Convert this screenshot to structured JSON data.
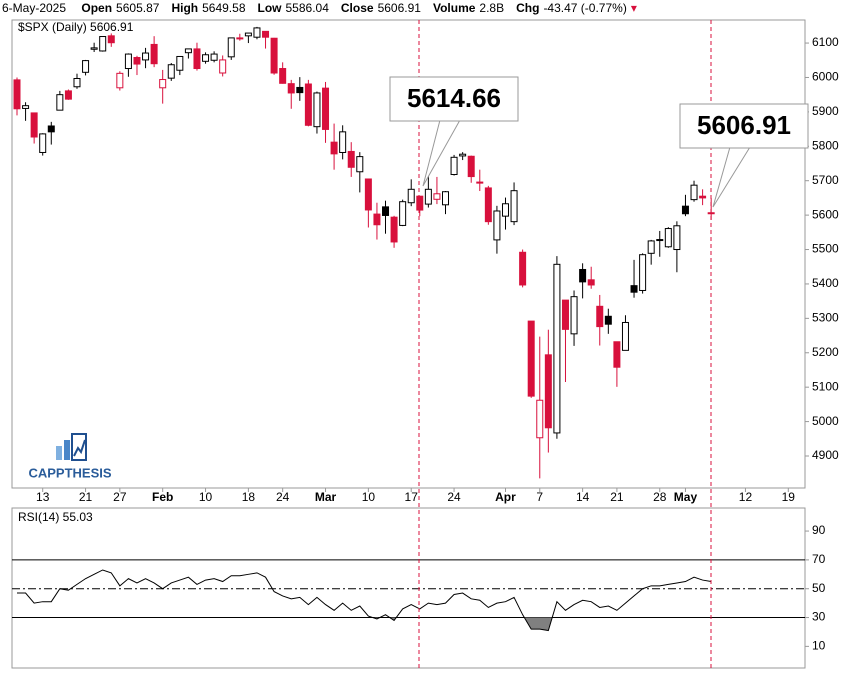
{
  "header": {
    "date": "6-May-2025",
    "fields": [
      {
        "label": "Open",
        "value": 5605.87
      },
      {
        "label": "High",
        "value": 5649.58
      },
      {
        "label": "Low",
        "value": 5586.04
      },
      {
        "label": "Close",
        "value": 5606.91
      },
      {
        "label": "Volume",
        "value": "2.8B"
      },
      {
        "label": "Chg",
        "value": "-43.47 (-0.77%)"
      }
    ]
  },
  "logo": "CAPPTHESIS",
  "chart_data": [
    {
      "type": "candlestick",
      "legend": "$SPX (Daily) 5606.91",
      "x": [
        "2025-01-07",
        "2025-01-08",
        "2025-01-10",
        "2025-01-13",
        "2025-01-14",
        "2025-01-15",
        "2025-01-16",
        "2025-01-17",
        "2025-01-21",
        "2025-01-22",
        "2025-01-23",
        "2025-01-24",
        "2025-01-27",
        "2025-01-28",
        "2025-01-29",
        "2025-01-30",
        "2025-01-31",
        "2025-02-03",
        "2025-02-04",
        "2025-02-05",
        "2025-02-06",
        "2025-02-07",
        "2025-02-10",
        "2025-02-11",
        "2025-02-12",
        "2025-02-13",
        "2025-02-14",
        "2025-02-18",
        "2025-02-19",
        "2025-02-20",
        "2025-02-21",
        "2025-02-24",
        "2025-02-25",
        "2025-02-26",
        "2025-02-27",
        "2025-02-28",
        "2025-03-03",
        "2025-03-04",
        "2025-03-05",
        "2025-03-06",
        "2025-03-07",
        "2025-03-10",
        "2025-03-11",
        "2025-03-12",
        "2025-03-13",
        "2025-03-14",
        "2025-03-17",
        "2025-03-18",
        "2025-03-19",
        "2025-03-20",
        "2025-03-21",
        "2025-03-24",
        "2025-03-25",
        "2025-03-26",
        "2025-03-27",
        "2025-03-28",
        "2025-03-31",
        "2025-04-01",
        "2025-04-02",
        "2025-04-03",
        "2025-04-04",
        "2025-04-07",
        "2025-04-08",
        "2025-04-09",
        "2025-04-10",
        "2025-04-11",
        "2025-04-14",
        "2025-04-15",
        "2025-04-16",
        "2025-04-17",
        "2025-04-21",
        "2025-04-22",
        "2025-04-23",
        "2025-04-24",
        "2025-04-25",
        "2025-04-28",
        "2025-04-29",
        "2025-04-30",
        "2025-05-01",
        "2025-05-02",
        "2025-05-05",
        "2025-05-06"
      ],
      "open": [
        5993,
        5910,
        5897,
        5782,
        5859,
        5905,
        5961,
        5973,
        6015,
        6082,
        6077,
        6121,
        5970,
        6026,
        6058,
        6051,
        6096,
        5970,
        5998,
        6021,
        6072,
        6083,
        6047,
        6050,
        6013,
        6060,
        6115,
        6121,
        6117,
        6134,
        6114,
        6026,
        5982,
        5971,
        5981,
        5857,
        5969,
        5812,
        5782,
        5785,
        5726,
        5705,
        5603,
        5624,
        5594,
        5570,
        5636,
        5655,
        5632,
        5646,
        5630,
        5718,
        5772,
        5771,
        5696,
        5679,
        5528,
        5597,
        5581,
        5492,
        5292,
        4953,
        5194,
        4967,
        5353,
        5255,
        5442,
        5412,
        5335,
        5306,
        5232,
        5207,
        5395,
        5381,
        5489,
        5529,
        5508,
        5500,
        5626,
        5645,
        5655,
        5605.87
      ],
      "high": [
        6000,
        5928,
        5897,
        5838,
        5871,
        5961,
        5965,
        6011,
        6051,
        6101,
        6119,
        6128,
        6018,
        6070,
        6063,
        6086,
        6120,
        6022,
        6042,
        6062,
        6084,
        6101,
        6073,
        6076,
        6064,
        6116,
        6127,
        6129,
        6147,
        6134,
        6115,
        6044,
        5993,
        6001,
        5993,
        5959,
        5987,
        5866,
        5861,
        5812,
        5783,
        5705,
        5636,
        5642,
        5598,
        5645,
        5704,
        5655,
        5715,
        5711,
        5670,
        5775,
        5783,
        5773,
        5732,
        5685,
        5627,
        5651,
        5695,
        5500,
        5292,
        5247,
        5267,
        5481,
        5353,
        5381,
        5460,
        5450,
        5368,
        5328,
        5232,
        5309,
        5470,
        5489,
        5528,
        5554,
        5565,
        5582,
        5659,
        5700,
        5675,
        5649.58
      ],
      "low": [
        5890,
        5874,
        5808,
        5773,
        5805,
        5905,
        5935,
        5967,
        6006,
        6074,
        6075,
        6089,
        5962,
        6002,
        6007,
        6027,
        6030,
        5924,
        5990,
        6007,
        6055,
        6020,
        6040,
        6044,
        6003,
        6051,
        6107,
        6100,
        6111,
        6084,
        6008,
        5982,
        5909,
        5932,
        5858,
        5837,
        5810,
        5732,
        5762,
        5711,
        5666,
        5564,
        5529,
        5546,
        5505,
        5568,
        5626,
        5597,
        5622,
        5632,
        5603,
        5715,
        5760,
        5694,
        5670,
        5572,
        5488,
        5558,
        5571,
        5390,
        5069,
        4835,
        4910,
        4950,
        5115,
        5220,
        5358,
        5386,
        5221,
        5255,
        5101,
        5207,
        5360,
        5372,
        5456,
        5479,
        5505,
        5434,
        5597,
        5639,
        5629,
        5586.04
      ],
      "close": [
        5909,
        5918,
        5827,
        5836,
        5842,
        5950,
        5937,
        5997,
        6049,
        6086,
        6119,
        6101,
        6012,
        6068,
        6039,
        6071,
        6040,
        5994,
        6037,
        6061,
        6083,
        6026,
        6066,
        6068,
        6051,
        6115,
        6114,
        6129,
        6144,
        6117,
        6013,
        5983,
        5955,
        5956,
        5861,
        5955,
        5849,
        5778,
        5842,
        5739,
        5770,
        5615,
        5572,
        5599,
        5522,
        5639,
        5675,
        5614.66,
        5675,
        5662,
        5668,
        5768,
        5777,
        5712,
        5693,
        5581,
        5612,
        5633,
        5671,
        5397,
        5074,
        5062,
        4982,
        5457,
        5268,
        5363,
        5406,
        5397,
        5276,
        5283,
        5158,
        5288,
        5376,
        5485,
        5525,
        5529,
        5561,
        5569,
        5604,
        5687,
        5650,
        5606.91
      ],
      "up_color": "#000000",
      "down_color": "#d8103c",
      "ylim": [
        4807,
        6167
      ],
      "yticks": [
        4900,
        5000,
        5100,
        5200,
        5300,
        5400,
        5500,
        5600,
        5700,
        5800,
        5900,
        6000,
        6100
      ],
      "xticks": [
        {
          "value": "2025-01-13",
          "label": "13"
        },
        {
          "value": "2025-01-21",
          "label": "21"
        },
        {
          "value": "2025-01-27",
          "label": "27"
        },
        {
          "value": "2025-02-03",
          "label": "Feb"
        },
        {
          "value": "2025-02-10",
          "label": "10"
        },
        {
          "value": "2025-02-18",
          "label": "18"
        },
        {
          "value": "2025-02-24",
          "label": "24"
        },
        {
          "value": "2025-03-03",
          "label": "Mar"
        },
        {
          "value": "2025-03-10",
          "label": "10"
        },
        {
          "value": "2025-03-17",
          "label": "17"
        },
        {
          "value": "2025-03-24",
          "label": "24"
        },
        {
          "value": "2025-04-01",
          "label": "Apr"
        },
        {
          "value": "2025-04-07",
          "label": "7"
        },
        {
          "value": "2025-04-14",
          "label": "14"
        },
        {
          "value": "2025-04-21",
          "label": "21"
        },
        {
          "value": "2025-04-28",
          "label": "28"
        },
        {
          "value": "2025-05-01",
          "label": "May"
        },
        {
          "value": "2025-05-12",
          "label": "12"
        },
        {
          "value": "2025-05-19",
          "label": "19"
        }
      ],
      "annotations": [
        5614.66,
        5606.91
      ]
    },
    {
      "type": "line",
      "legend": "RSI(14) 55.03",
      "color": "#000000",
      "values": [
        47,
        47,
        40,
        41,
        41,
        50,
        49,
        53,
        57,
        60,
        63,
        61,
        52,
        57,
        54,
        57,
        54,
        50,
        54,
        56,
        58,
        53,
        56,
        57,
        55,
        59,
        59,
        60,
        61,
        58,
        48,
        45,
        43,
        44,
        39,
        44,
        39,
        35,
        40,
        35,
        38,
        31,
        29,
        32,
        28,
        36,
        39,
        36,
        40,
        39,
        40,
        46,
        47,
        43,
        42,
        37,
        40,
        41,
        44,
        32,
        22,
        22,
        21,
        41,
        35,
        39,
        42,
        41,
        37,
        38,
        35,
        40,
        45,
        50,
        52,
        52,
        53,
        54,
        55,
        58,
        56,
        55.03
      ],
      "ylim": [
        -5,
        106
      ],
      "yticks": [
        10,
        30,
        50,
        70,
        90
      ],
      "levels": [
        30,
        50,
        70
      ],
      "fill_color": "#808080"
    }
  ]
}
